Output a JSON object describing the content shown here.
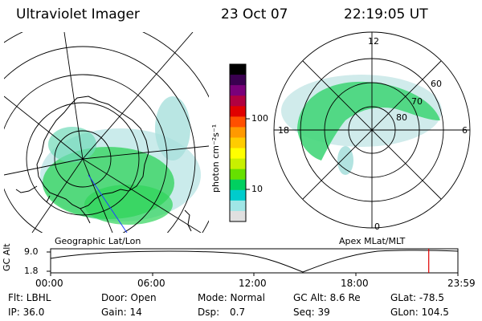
{
  "header": {
    "instrument": "Ultraviolet Imager",
    "date": "23 Oct 07",
    "time": "22:19:05 UT"
  },
  "left_map": {
    "label": "Geographic Lat/Lon"
  },
  "right_map": {
    "label": "Apex MLat/MLT",
    "mlt_labels": {
      "top": "12",
      "left": "18",
      "right": "6",
      "bottom": "0"
    },
    "mlat_labels": [
      "60",
      "70",
      "80"
    ]
  },
  "colorbar": {
    "unit_label": "photon cm⁻²s⁻¹",
    "ticks": [
      "100",
      "10"
    ],
    "colors": [
      "#000000",
      "#3a0050",
      "#7a007a",
      "#b00040",
      "#e00000",
      "#ff5000",
      "#ff9900",
      "#ffcc00",
      "#ffff00",
      "#c8f000",
      "#66e000",
      "#00d060",
      "#00cccc",
      "#a0e6e6",
      "#e0e0e0"
    ]
  },
  "altitude_plot": {
    "ylabel": "GC Alt",
    "y_ticks": [
      "9.0",
      "1.8"
    ],
    "x_ticks": [
      "00:00",
      "06:00",
      "12:00",
      "18:00",
      "23:59"
    ],
    "current_time_fraction": 0.9285,
    "marker_color": "#e00000"
  },
  "status": {
    "filter": "Flt: LBHL",
    "ip": "IP: 36.0",
    "door": "Door: Open",
    "gain": "Gain: 14",
    "mode": "Mode: Normal",
    "dsp_label": "Dsp:",
    "dsp_value": "0.7",
    "gc_alt": "GC Alt: 8.6 Re",
    "seq": "Seq: 39",
    "glat": "GLat: -78.5",
    "glon": "GLon: 104.5"
  }
}
